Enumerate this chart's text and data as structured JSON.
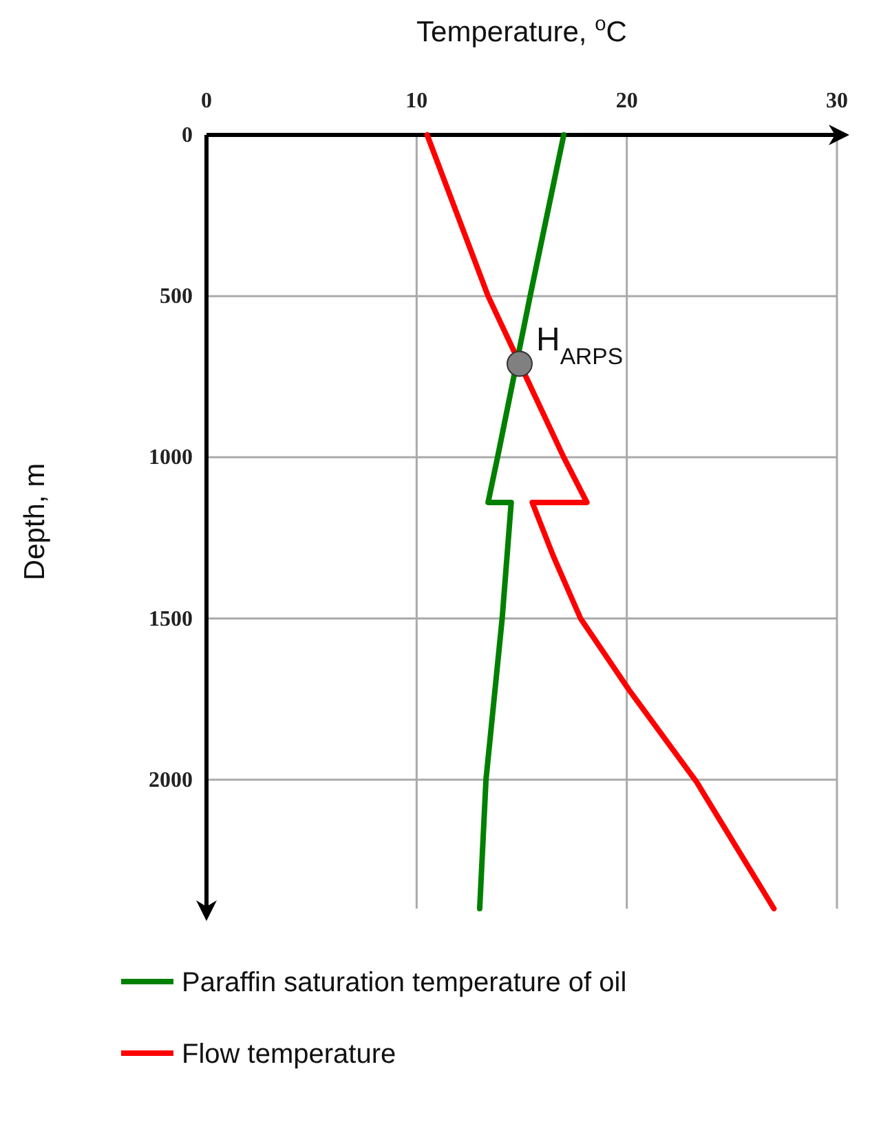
{
  "chart_data": {
    "type": "line",
    "xlabel": "Temperature, $^{o}$C",
    "ylabel": "Depth, m",
    "xlim": [
      0,
      30
    ],
    "xticks": [
      0,
      10,
      20,
      30
    ],
    "ylim": [
      2400,
      0
    ],
    "yticks": [
      0,
      500,
      1000,
      1500,
      2000
    ],
    "grid": true,
    "legend": "bottom",
    "series": [
      {
        "name": "Paraffin saturation temperature of oil",
        "color": "#008000",
        "x": [
          17.0,
          15.4,
          13.85,
          13.4,
          14.5,
          14.07,
          13.3,
          13.0
        ],
        "values": [
          0,
          500,
          1000,
          1140,
          1140,
          1500,
          2000,
          2400
        ]
      },
      {
        "name": "Flow temperature",
        "color": "#ff0000",
        "x": [
          10.5,
          13.4,
          17.0,
          18.1,
          15.5,
          16.5,
          17.8,
          20.1,
          23.3,
          27.0
        ],
        "values": [
          0,
          500,
          1000,
          1140,
          1140,
          1306,
          1500,
          1721,
          2005,
          2400
        ]
      },
      {
        "type": "scatter",
        "color": "#808080",
        "x": [
          14.9
        ],
        "values": [
          710
        ]
      }
    ],
    "annotations": [
      {
        "text": "H$_{ARPS}$",
        "x": 14.9,
        "y": 710
      }
    ]
  }
}
